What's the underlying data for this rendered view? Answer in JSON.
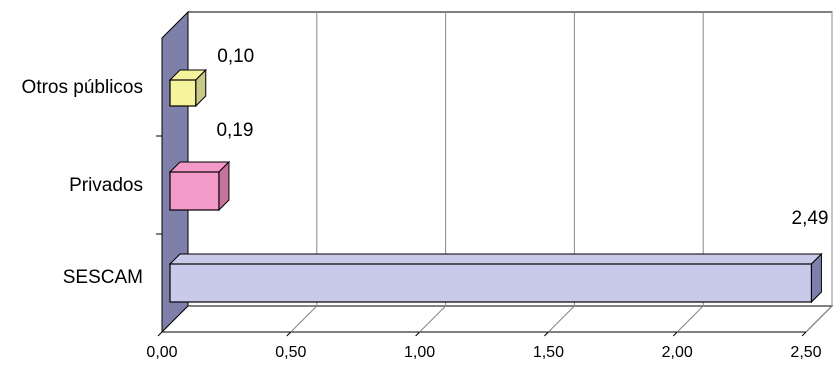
{
  "chart_data": {
    "type": "bar",
    "orientation": "horizontal",
    "three_d": true,
    "categories": [
      "Otros públicos",
      "Privados",
      "SESCAM"
    ],
    "values": [
      0.1,
      0.19,
      2.49
    ],
    "value_labels": [
      "0,10",
      "0,19",
      "2,49"
    ],
    "xlim": [
      0,
      2.5
    ],
    "x_ticks": [
      0,
      0.5,
      1,
      1.5,
      2,
      2.5
    ],
    "x_tick_labels": [
      "0,00",
      "0,50",
      "1,00",
      "1,50",
      "2,00",
      "2,50"
    ],
    "grid": true,
    "legend": "none",
    "colors": {
      "bar_fill": [
        "#F5F39B",
        "#F39AC8",
        "#C9C9EA"
      ],
      "bar_side": [
        "#C8C888",
        "#C8739E",
        "#7F7FAE"
      ],
      "side_wall": "#7F80A9",
      "floor": "#FFFFFF",
      "gridline": "#888888"
    }
  }
}
